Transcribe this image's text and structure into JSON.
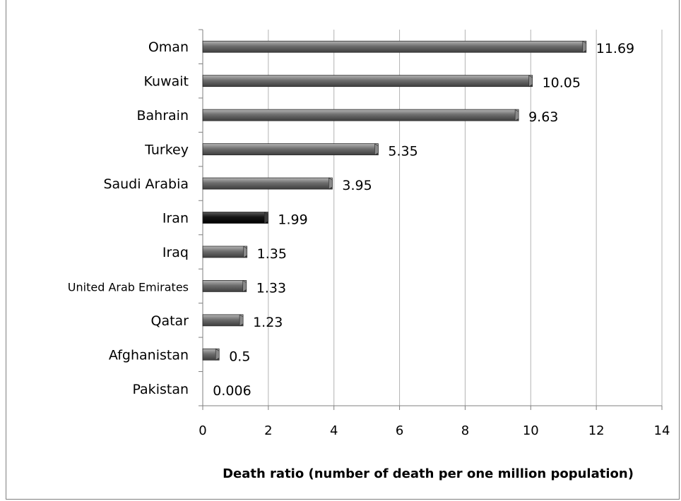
{
  "chart_data": {
    "type": "bar",
    "orientation": "horizontal",
    "categories": [
      "Oman",
      "Kuwait",
      "Bahrain",
      "Turkey",
      "Saudi Arabia",
      "Iran",
      "Iraq",
      "United Arab Emirates",
      "Qatar",
      "Afghanistan",
      "Pakistan"
    ],
    "values": [
      11.69,
      10.05,
      9.63,
      5.35,
      3.95,
      1.99,
      1.35,
      1.33,
      1.23,
      0.5,
      0.006
    ],
    "data_labels": [
      "11.69",
      "10.05",
      "9.63",
      "5.35",
      "3.95",
      "1.99",
      "1.35",
      "1.33",
      "1.23",
      "0.5",
      "0.006"
    ],
    "highlight_category": "Iran",
    "xlabel": "Death ratio (number of death per one million population)",
    "xlim": [
      0,
      14
    ],
    "xticks": [
      "0",
      "2",
      "4",
      "6",
      "8",
      "10",
      "12",
      "14"
    ],
    "grid": "vertical",
    "legend": "none",
    "colors": {
      "bar": "#6e6e6e",
      "bar_highlight": "#111111",
      "grid": "#b3b3b3",
      "axis": "#7f7f7f"
    }
  }
}
